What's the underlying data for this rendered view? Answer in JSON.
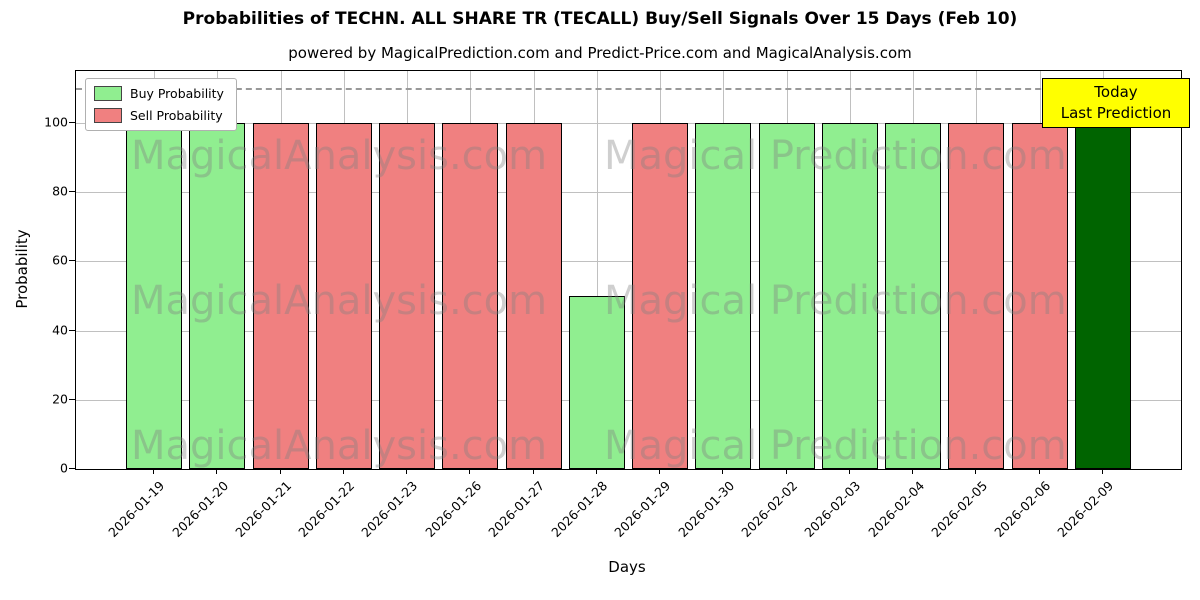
{
  "chart_data": {
    "type": "bar",
    "title": "Probabilities of TECHN. ALL SHARE TR (TECALL) Buy/Sell Signals Over 15 Days (Feb 10)",
    "subtitle": "powered by MagicalPrediction.com and Predict-Price.com and MagicalAnalysis.com",
    "xlabel": "Days",
    "ylabel": "Probability",
    "ylim": [
      0,
      115
    ],
    "yticks": [
      0,
      20,
      40,
      60,
      80,
      100
    ],
    "dashed_line_y": 110,
    "grid": true,
    "legend": {
      "position": "top-left",
      "entries": [
        {
          "label": "Buy Probability",
          "color": "#90EE90"
        },
        {
          "label": "Sell Probability",
          "color": "#F08080"
        }
      ]
    },
    "categories": [
      "2026-01-19",
      "2026-01-20",
      "2026-01-21",
      "2026-01-22",
      "2026-01-23",
      "2026-01-26",
      "2026-01-27",
      "2026-01-28",
      "2026-01-29",
      "2026-01-30",
      "2026-02-02",
      "2026-02-03",
      "2026-02-04",
      "2026-02-05",
      "2026-02-06",
      "2026-02-09"
    ],
    "bars": [
      {
        "date": "2026-01-19",
        "value": 100,
        "series": "buy"
      },
      {
        "date": "2026-01-20",
        "value": 100,
        "series": "buy"
      },
      {
        "date": "2026-01-21",
        "value": 100,
        "series": "sell"
      },
      {
        "date": "2026-01-22",
        "value": 100,
        "series": "sell"
      },
      {
        "date": "2026-01-23",
        "value": 100,
        "series": "sell"
      },
      {
        "date": "2026-01-26",
        "value": 100,
        "series": "sell"
      },
      {
        "date": "2026-01-27",
        "value": 100,
        "series": "sell"
      },
      {
        "date": "2026-01-28",
        "value": 50,
        "series": "buy"
      },
      {
        "date": "2026-01-29",
        "value": 100,
        "series": "sell"
      },
      {
        "date": "2026-01-30",
        "value": 100,
        "series": "buy"
      },
      {
        "date": "2026-02-02",
        "value": 100,
        "series": "buy"
      },
      {
        "date": "2026-02-03",
        "value": 100,
        "series": "buy"
      },
      {
        "date": "2026-02-04",
        "value": 100,
        "series": "buy"
      },
      {
        "date": "2026-02-05",
        "value": 100,
        "series": "sell"
      },
      {
        "date": "2026-02-06",
        "value": 100,
        "series": "sell"
      },
      {
        "date": "2026-02-09",
        "value": 100,
        "series": "today"
      }
    ],
    "colors": {
      "buy": "#90EE90",
      "sell": "#F08080",
      "today": "#006400",
      "edge": "#000000"
    },
    "annotation": {
      "lines": [
        "Today",
        "Last Prediction"
      ],
      "bg": "#FFFF00"
    },
    "watermarks": {
      "left": "MagicalAnalysis.com",
      "right": "Magical Prediction.com",
      "rows": 3
    }
  }
}
